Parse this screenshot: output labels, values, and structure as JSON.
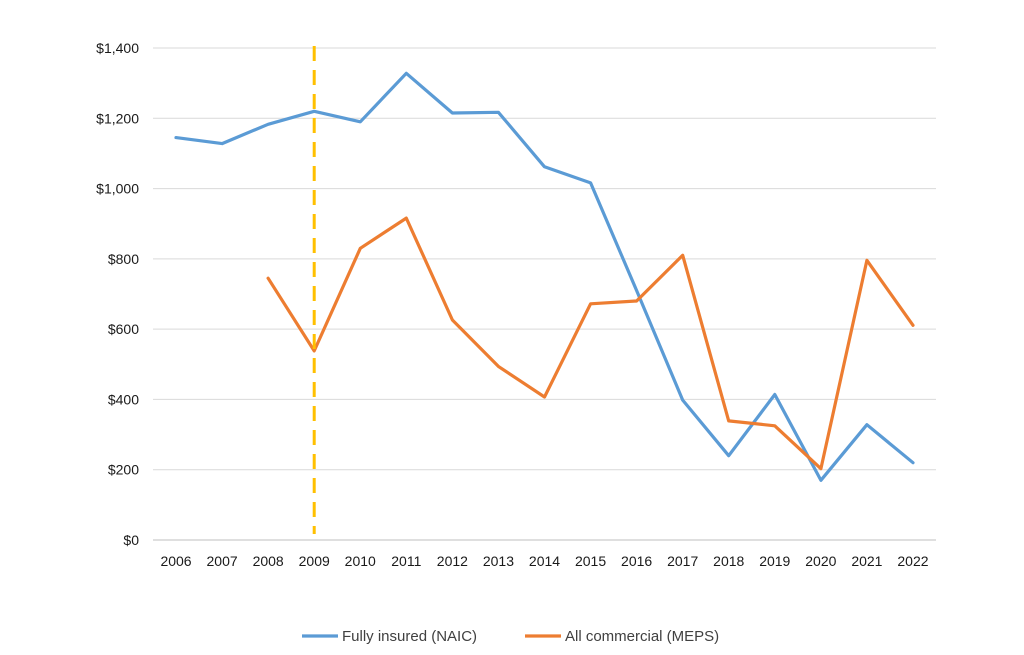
{
  "chart_data": {
    "type": "line",
    "title": "",
    "xlabel": "",
    "ylabel": "",
    "x": [
      "2006",
      "2007",
      "2008",
      "2009",
      "2010",
      "2011",
      "2012",
      "2013",
      "2014",
      "2015",
      "2016",
      "2017",
      "2018",
      "2019",
      "2020",
      "2021",
      "2022"
    ],
    "ylim": [
      0,
      1400
    ],
    "y_ticks": [
      {
        "value": 0,
        "label": "$0"
      },
      {
        "value": 200,
        "label": "$200"
      },
      {
        "value": 400,
        "label": "$400"
      },
      {
        "value": 600,
        "label": "$600"
      },
      {
        "value": 800,
        "label": "$800"
      },
      {
        "value": 1000,
        "label": "$1,000"
      },
      {
        "value": 1200,
        "label": "$1,200"
      },
      {
        "value": 1400,
        "label": "$1,400"
      }
    ],
    "grid": "horizontal",
    "legend_position": "bottom",
    "series": [
      {
        "name": "Fully insured (NAIC)",
        "color": "#5b9bd5",
        "values": [
          1145,
          1128,
          1183,
          1220,
          1190,
          1328,
          1215,
          1217,
          1062,
          1016,
          710,
          398,
          240,
          414,
          170,
          328,
          220
        ]
      },
      {
        "name": "All commercial (MEPS)",
        "color": "#ed7d31",
        "values": [
          null,
          null,
          745,
          538,
          830,
          916,
          626,
          494,
          407,
          672,
          680,
          810,
          339,
          325,
          203,
          796,
          611
        ]
      }
    ],
    "reference_line": {
      "x": "2009",
      "color": "#ffc000",
      "style": "dashed"
    }
  }
}
